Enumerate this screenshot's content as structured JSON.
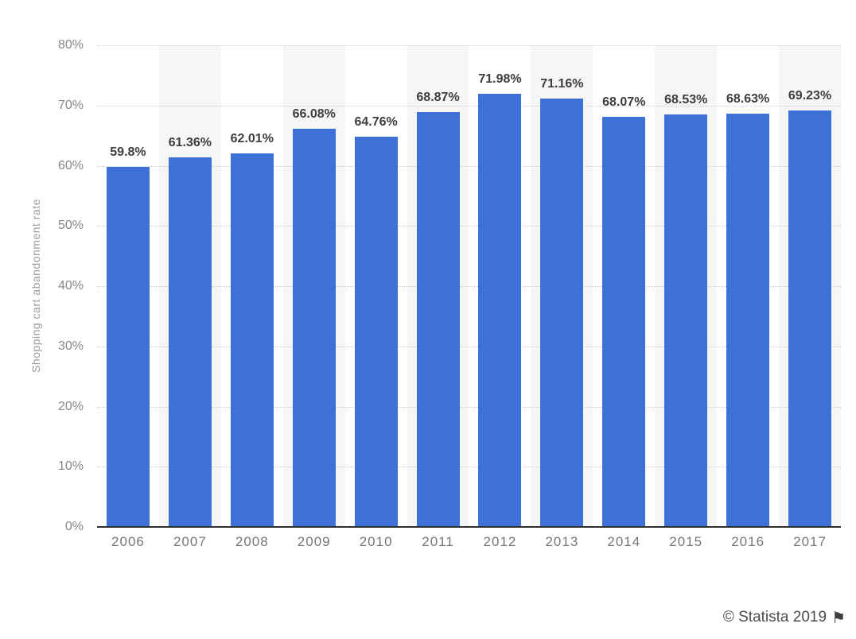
{
  "chart_data": {
    "type": "bar",
    "title": "",
    "xlabel": "",
    "ylabel": "Shopping cart abandonment rate",
    "categories": [
      "2006",
      "2007",
      "2008",
      "2009",
      "2010",
      "2011",
      "2012",
      "2013",
      "2014",
      "2015",
      "2016",
      "2017"
    ],
    "values": [
      59.8,
      61.36,
      62.01,
      66.08,
      64.76,
      68.87,
      71.98,
      71.16,
      68.07,
      68.53,
      68.63,
      69.23
    ],
    "value_labels": [
      "59.8%",
      "61.36%",
      "62.01%",
      "66.08%",
      "64.76%",
      "68.87%",
      "71.98%",
      "71.16%",
      "68.07%",
      "68.53%",
      "68.63%",
      "69.23%"
    ],
    "ylim": [
      0,
      80
    ],
    "ytick_step": 10,
    "ytick_labels": [
      "0%",
      "10%",
      "20%",
      "30%",
      "40%",
      "50%",
      "60%",
      "70%",
      "80%"
    ],
    "grid": "horizontal-dotted",
    "legend": "none",
    "bar_color": "#3e71d6",
    "stripe_color": "#f6f6f6",
    "striped_columns": "alternate starting with second column"
  },
  "credit": {
    "text": "© Statista 2019",
    "flag_icon": "flag-icon"
  }
}
